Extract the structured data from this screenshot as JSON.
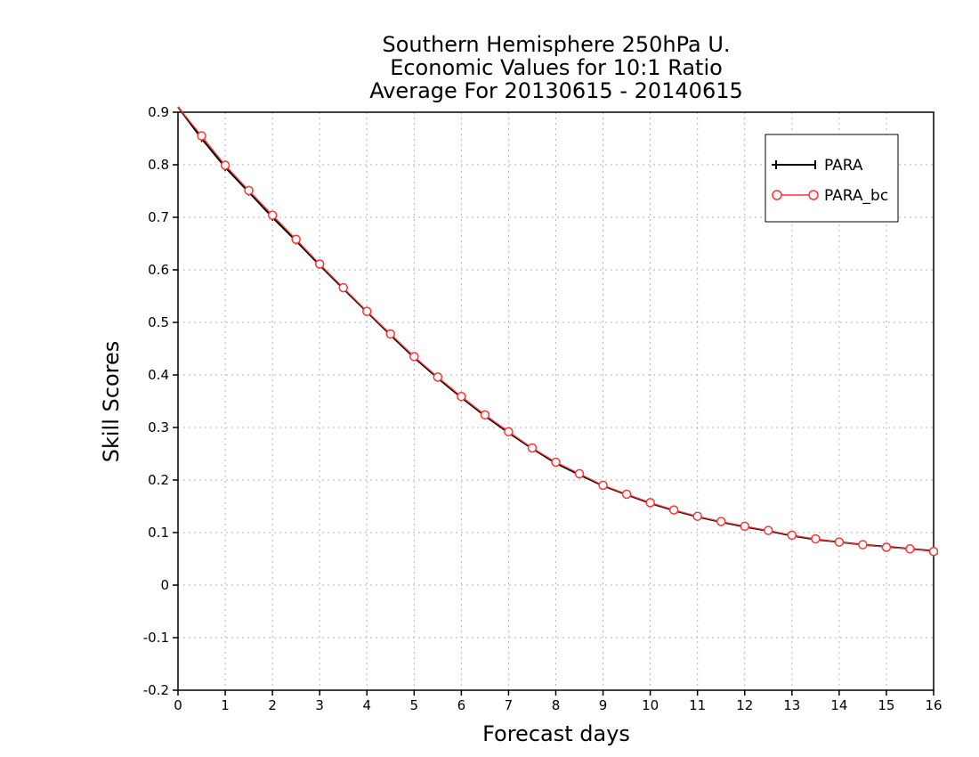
{
  "chart_data": {
    "type": "line",
    "title": [
      "Southern Hemisphere 250hPa U.",
      "Economic Values for 10:1 Ratio",
      "Average For 20130615 - 20140615"
    ],
    "xlabel": "Forecast days",
    "ylabel": "Skill Scores",
    "xlim": [
      0,
      16
    ],
    "ylim": [
      -0.2,
      0.9
    ],
    "xticks": [
      "0",
      "1",
      "2",
      "3",
      "4",
      "5",
      "6",
      "7",
      "8",
      "9",
      "10",
      "11",
      "12",
      "13",
      "14",
      "15",
      "16"
    ],
    "yticks": [
      "-0.2",
      "-0.1",
      "0",
      "0.1",
      "0.2",
      "0.3",
      "0.4",
      "0.5",
      "0.6",
      "0.7",
      "0.8",
      "0.9"
    ],
    "grid": true,
    "legend_position": "top-right",
    "x": [
      0,
      0.5,
      1,
      1.5,
      2,
      2.5,
      3,
      3.5,
      4,
      4.5,
      5,
      5.5,
      6,
      6.5,
      7,
      7.5,
      8,
      8.5,
      9,
      9.5,
      10,
      10.5,
      11,
      11.5,
      12,
      12.5,
      13,
      13.5,
      14,
      14.5,
      15,
      15.5,
      16
    ],
    "series": [
      {
        "name": "PARA",
        "color": "#000000",
        "marker": "plus",
        "values": [
          0.91,
          0.85,
          0.795,
          0.748,
          0.7,
          0.655,
          0.609,
          0.564,
          0.52,
          0.476,
          0.433,
          0.394,
          0.357,
          0.322,
          0.29,
          0.26,
          0.232,
          0.21,
          0.189,
          0.172,
          0.156,
          0.142,
          0.13,
          0.12,
          0.111,
          0.103,
          0.094,
          0.087,
          0.082,
          0.077,
          0.073,
          0.069,
          0.065
        ]
      },
      {
        "name": "PARA_bc",
        "color": "#ff3333",
        "marker": "circle",
        "values": [
          0.91,
          0.855,
          0.799,
          0.751,
          0.704,
          0.658,
          0.611,
          0.566,
          0.521,
          0.478,
          0.435,
          0.396,
          0.359,
          0.324,
          0.292,
          0.261,
          0.234,
          0.212,
          0.19,
          0.173,
          0.157,
          0.143,
          0.131,
          0.121,
          0.112,
          0.104,
          0.095,
          0.088,
          0.082,
          0.077,
          0.072,
          0.069,
          0.064
        ]
      }
    ]
  }
}
